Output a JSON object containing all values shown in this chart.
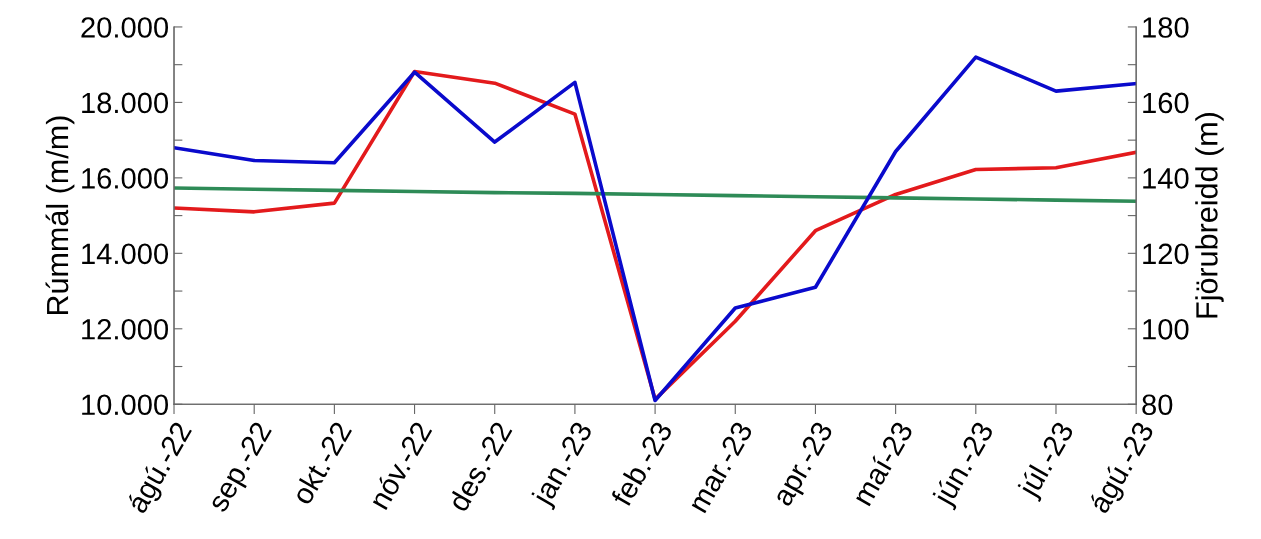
{
  "chart_data": {
    "type": "line",
    "ylabel": "Rúmmál (m/m)",
    "y2label": "Fjörubreidd (m)",
    "categories": [
      "ágú.-22",
      "sep.-22",
      "okt.-22",
      "nóv.-22",
      "des.-22",
      "jan.-23",
      "feb.-23",
      "mar.-23",
      "apr.-23",
      "maí-23",
      "jún.-23",
      "júl.-23",
      "ágú.-23"
    ],
    "series": [
      {
        "color": "#e31a1c",
        "values": [
          15200,
          15100,
          15330,
          18820,
          18510,
          17690,
          10130,
          12200,
          14600,
          15560,
          16220,
          16270,
          16680
        ]
      },
      {
        "color": "#0a0acc",
        "axis": "y2",
        "values": [
          148,
          144.6,
          144,
          168,
          149.5,
          165.3,
          81,
          105.5,
          111,
          147,
          172,
          163,
          165
        ]
      },
      {
        "color": "#2e8b57",
        "values": [
          15730,
          15700,
          15670,
          15640,
          15610,
          15590,
          15560,
          15530,
          15500,
          15470,
          15440,
          15410,
          15380
        ]
      }
    ],
    "ylim": [
      10000,
      20000
    ],
    "yticks": [
      {
        "value": 10000,
        "label": "10.000"
      },
      {
        "value": 11000,
        "label": null
      },
      {
        "value": 12000,
        "label": "12.000"
      },
      {
        "value": 13000,
        "label": null
      },
      {
        "value": 14000,
        "label": "14.000"
      },
      {
        "value": 15000,
        "label": null
      },
      {
        "value": 16000,
        "label": "16.000"
      },
      {
        "value": 17000,
        "label": null
      },
      {
        "value": 18000,
        "label": "18.000"
      },
      {
        "value": 19000,
        "label": null
      },
      {
        "value": 20000,
        "label": "20.000"
      }
    ],
    "y2lim": [
      80,
      180
    ],
    "y2ticks": [
      80,
      {
        "value": 90,
        "label": null
      },
      100,
      {
        "value": 110,
        "label": null
      },
      120,
      {
        "value": 130,
        "label": null
      },
      140,
      {
        "value": 150,
        "label": null
      },
      160,
      {
        "value": 170,
        "label": null
      },
      180
    ],
    "grid": false,
    "marker": "none",
    "line_style": "solid"
  }
}
